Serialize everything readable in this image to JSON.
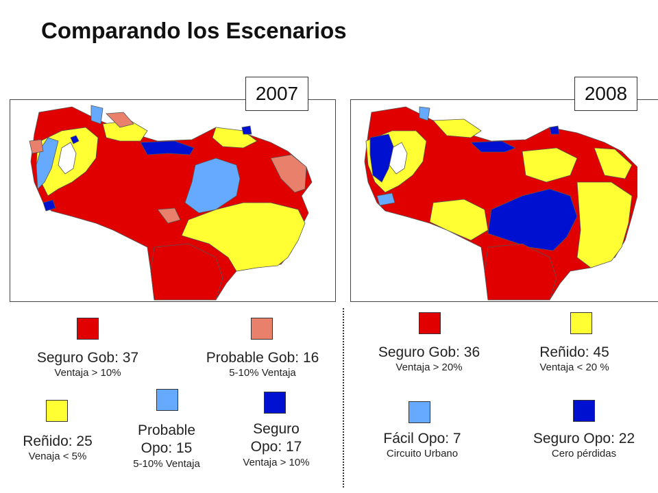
{
  "title": "Comparando los Escenarios",
  "colors": {
    "seguro_gob": "#e00000",
    "probable_gob": "#e8806c",
    "renido": "#ffff33",
    "probable_opo": "#66aaff",
    "facil_opo": "#66aaff",
    "seguro_opo": "#0010d0"
  },
  "map_2007": {
    "year": "2007",
    "legend": [
      {
        "name": "Seguro Gob: 37",
        "note": "Ventaja  > 10%",
        "color": "#e00000"
      },
      {
        "name": "Probable Gob: 16",
        "note": "5-10% Ventaja",
        "color": "#e8806c"
      },
      {
        "name": "Reñido: 25",
        "note": "Venaja < 5%",
        "color": "#ffff33"
      },
      {
        "name_line1": "Probable",
        "name_line2": "Opo: 15",
        "note": "5-10% Ventaja",
        "color": "#66aaff"
      },
      {
        "name_line1": "Seguro",
        "name_line2": "Opo: 17",
        "note": "Ventaja > 10%",
        "color": "#0010d0"
      }
    ]
  },
  "map_2008": {
    "year": "2008",
    "legend": [
      {
        "name": "Seguro Gob: 36",
        "note": "Ventaja > 20%",
        "color": "#e00000"
      },
      {
        "name": "Reñido: 45",
        "note": "Ventaja < 20 %",
        "color": "#ffff33"
      },
      {
        "name": "Fácil Opo: 7",
        "note": "Circuito Urbano",
        "color": "#66aaff"
      },
      {
        "name": "Seguro Opo: 22",
        "note": "Cero pérdidas",
        "color": "#0010d0"
      }
    ]
  }
}
